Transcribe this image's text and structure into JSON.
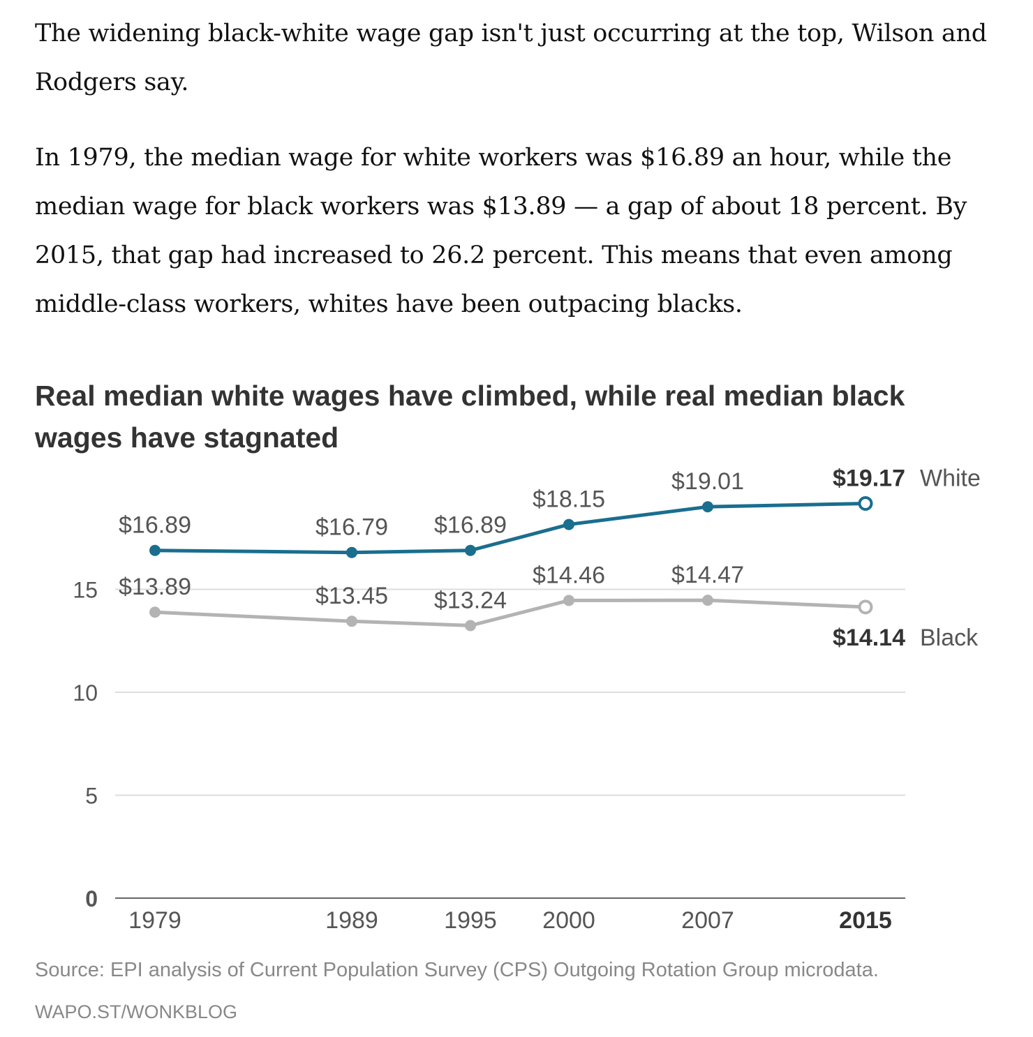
{
  "article": {
    "paragraph1": "The widening black-white wage gap isn't just occurring at the top, Wilson and Rodgers say.",
    "paragraph2": "In 1979, the median wage for white workers was $16.89 an hour, while the median wage for black workers was $13.89 — a gap of about 18 percent. By 2015, that gap had increased to 26.2 percent. This means that even among middle-class workers, whites have been outpacing blacks."
  },
  "chart_data": {
    "type": "line",
    "title": "Real median white wages have climbed, while real median black wages have stagnated",
    "xlabel": "",
    "ylabel": "",
    "x": [
      1979,
      1989,
      1995,
      2000,
      2007,
      2015
    ],
    "x_tick_labels": [
      "1979",
      "1989",
      "1995",
      "2000",
      "2007",
      "2015"
    ],
    "y_ticks": [
      0,
      5,
      10,
      15
    ],
    "ylim": [
      0,
      20
    ],
    "grid": true,
    "series": [
      {
        "name": "White",
        "color": "#1a6e8e",
        "values": [
          16.89,
          16.79,
          16.89,
          18.15,
          19.01,
          19.17
        ],
        "labels": [
          "$16.89",
          "$16.79",
          "$16.89",
          "$18.15",
          "$19.01",
          "$19.17"
        ]
      },
      {
        "name": "Black",
        "color": "#b3b3b3",
        "values": [
          13.89,
          13.45,
          13.24,
          14.46,
          14.47,
          14.14
        ],
        "labels": [
          "$13.89",
          "$13.45",
          "$13.24",
          "$14.46",
          "$14.47",
          "$14.14"
        ]
      }
    ]
  },
  "footer": {
    "source": "Source: EPI analysis of Current Population Survey (CPS) Outgoing Rotation Group microdata.",
    "credit": "WAPO.ST/WONKBLOG"
  },
  "colors": {
    "text": "#111111",
    "title": "#333333",
    "axis_text": "#555555",
    "grid": "#dddddd",
    "baseline": "#666666",
    "footer": "#888888"
  }
}
